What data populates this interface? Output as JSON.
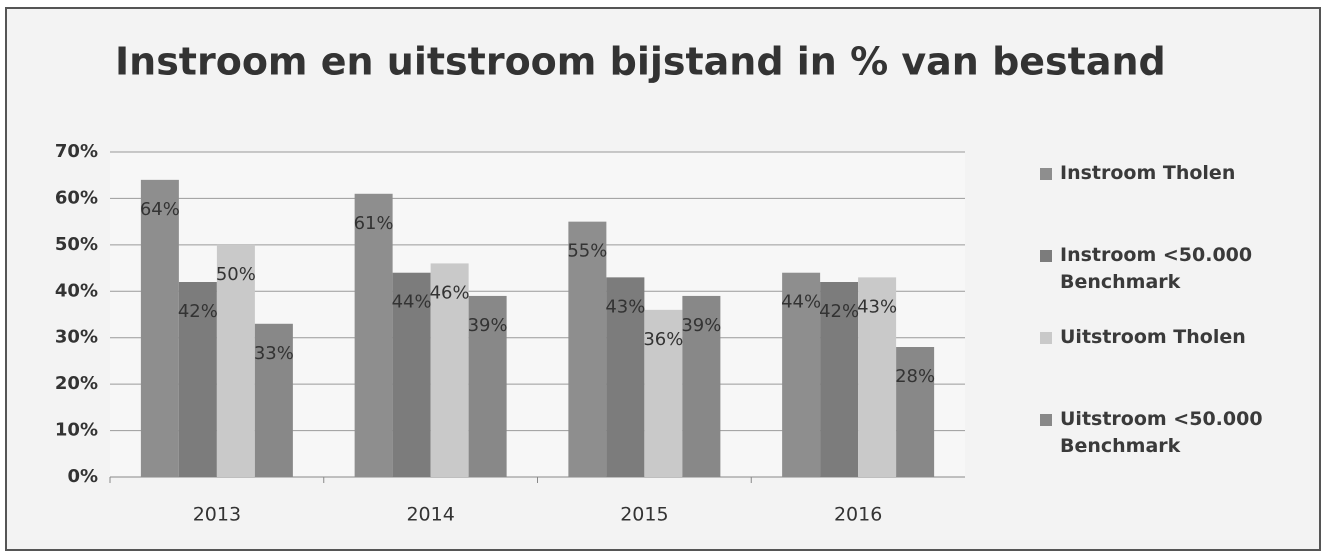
{
  "chart_data": {
    "type": "bar",
    "title": "Instroom en uitstroom bijstand in % van bestand",
    "categories": [
      "2013",
      "2014",
      "2015",
      "2016"
    ],
    "series": [
      {
        "name": "Instroom Tholen",
        "color": "#8e8e8e",
        "values": [
          64,
          61,
          55,
          44
        ],
        "value_labels": [
          "64%",
          "61%",
          "55%",
          "44%"
        ]
      },
      {
        "name": "Instroom <50.000 Benchmark",
        "color": "#7c7c7c",
        "values": [
          42,
          44,
          43,
          42
        ],
        "value_labels": [
          "42%",
          "44%",
          "43%",
          "42%"
        ]
      },
      {
        "name": "Uitstroom Tholen",
        "color": "#c9c9c9",
        "values": [
          50,
          46,
          36,
          43
        ],
        "value_labels": [
          "50%",
          "46%",
          "36%",
          "43%"
        ]
      },
      {
        "name": "Uitstroom <50.000 Benchmark",
        "color": "#888888",
        "values": [
          33,
          39,
          39,
          28
        ],
        "value_labels": [
          "33%",
          "39%",
          "39%",
          "28%"
        ]
      }
    ],
    "ylim": [
      0,
      70
    ],
    "yticks": [
      {
        "value": 0,
        "label": "0%"
      },
      {
        "value": 10,
        "label": "10%"
      },
      {
        "value": 20,
        "label": "20%"
      },
      {
        "value": 30,
        "label": "30%"
      },
      {
        "value": 40,
        "label": "40%"
      },
      {
        "value": 50,
        "label": "50%"
      },
      {
        "value": 60,
        "label": "60%"
      },
      {
        "value": 70,
        "label": "70%"
      }
    ],
    "grid": true,
    "legend": "right"
  }
}
